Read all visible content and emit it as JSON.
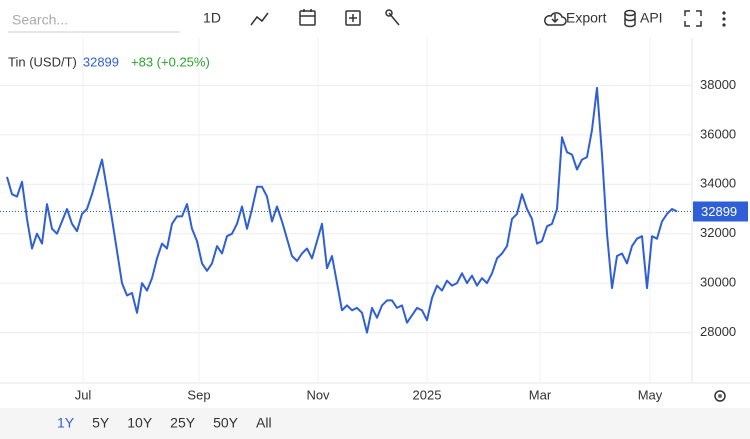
{
  "toolbar": {
    "search_placeholder": "Search...",
    "interval": "1D",
    "export": "Export",
    "api": "API"
  },
  "chart_data": {
    "type": "line",
    "series": [
      {
        "name": "Tin (USD/T)",
        "color": "#2f5fd6",
        "values": [
          34300,
          33600,
          33500,
          34100,
          32600,
          31400,
          32000,
          31600,
          33200,
          32200,
          32000,
          32500,
          33000,
          32400,
          32100,
          32800,
          33000,
          33600,
          34300,
          35000,
          33800,
          32600,
          31300,
          30000,
          29500,
          29600,
          28800,
          30000,
          29700,
          30200,
          31000,
          31600,
          31400,
          32400,
          32700,
          32700,
          33200,
          32200,
          31700,
          30800,
          30500,
          30800,
          31500,
          31200,
          31900,
          32000,
          32400,
          33100,
          32200,
          33000,
          33900,
          33900,
          33500,
          32500,
          33100,
          32500,
          31800,
          31100,
          30900,
          31200,
          31400,
          31000,
          31700,
          32400,
          30600,
          31100,
          30000,
          28900,
          29100,
          28900,
          29000,
          28800,
          28000,
          29000,
          28600,
          29100,
          29300,
          29300,
          29000,
          29100,
          28400,
          28700,
          29000,
          28900,
          28500,
          29400,
          29900,
          29700,
          30100,
          29900,
          30000,
          30400,
          30000,
          30300,
          29900,
          30200,
          30000,
          30400,
          31000,
          31200,
          31500,
          32600,
          32800,
          33600,
          33000,
          32600,
          31600,
          31700,
          32300,
          32400,
          33000,
          35900,
          35300,
          35200,
          34600,
          35000,
          35100,
          36200,
          37900,
          35200,
          32000,
          29800,
          31100,
          31200,
          30800,
          31500,
          31800,
          31900,
          29800,
          31900,
          31800,
          32500,
          32800,
          33000,
          32899
        ]
      }
    ],
    "change": "+83 (+0.25%)",
    "xlim": [
      0,
      134
    ],
    "xticks": [
      {
        "value": 15.2,
        "label": "Jul"
      },
      {
        "value": 38.4,
        "label": "Sep"
      },
      {
        "value": 62.2,
        "label": "Nov"
      },
      {
        "value": 84,
        "label": "2025"
      },
      {
        "value": 106.6,
        "label": "Mar"
      },
      {
        "value": 128.6,
        "label": "May"
      }
    ],
    "ylim": [
      26000,
      40000
    ],
    "yticks": [
      28000,
      30000,
      32000,
      34000,
      36000,
      38000
    ],
    "grid": true
  },
  "ranges": [
    "1Y",
    "5Y",
    "10Y",
    "25Y",
    "50Y",
    "All"
  ]
}
